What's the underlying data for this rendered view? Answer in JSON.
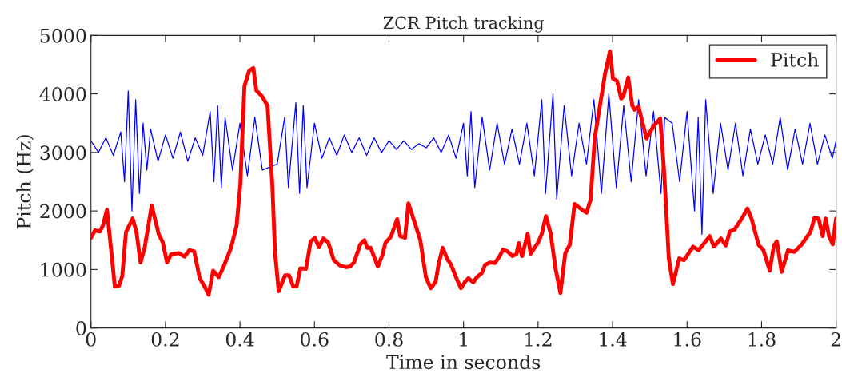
{
  "chart_data": {
    "type": "line",
    "title": "ZCR Pitch tracking",
    "xlabel": "Time in seconds",
    "ylabel": "Pitch (Hz)",
    "xlim": [
      0,
      2
    ],
    "ylim": [
      0,
      5000
    ],
    "xticks": [
      0,
      0.2,
      0.4,
      0.6,
      0.8,
      1,
      1.2,
      1.4,
      1.6,
      1.8,
      2
    ],
    "yticks": [
      0,
      1000,
      2000,
      3000,
      4000,
      5000
    ],
    "grid": false,
    "legend": "top right",
    "series": [
      {
        "color": "#0000ff",
        "x": [
          0,
          0.02,
          0.04,
          0.06,
          0.08,
          0.09,
          0.1,
          0.11,
          0.12,
          0.13,
          0.14,
          0.15,
          0.16,
          0.18,
          0.2,
          0.22,
          0.24,
          0.26,
          0.28,
          0.3,
          0.32,
          0.33,
          0.34,
          0.35,
          0.36,
          0.38,
          0.4,
          0.42,
          0.44,
          0.46,
          0.48,
          0.5,
          0.52,
          0.53,
          0.55,
          0.56,
          0.57,
          0.58,
          0.6,
          0.62,
          0.64,
          0.66,
          0.68,
          0.7,
          0.72,
          0.74,
          0.76,
          0.78,
          0.8,
          0.82,
          0.84,
          0.86,
          0.88,
          0.9,
          0.92,
          0.94,
          0.96,
          0.98,
          1.0,
          1.01,
          1.02,
          1.03,
          1.05,
          1.07,
          1.09,
          1.11,
          1.13,
          1.15,
          1.17,
          1.19,
          1.21,
          1.22,
          1.24,
          1.25,
          1.27,
          1.29,
          1.31,
          1.33,
          1.35,
          1.37,
          1.39,
          1.41,
          1.43,
          1.45,
          1.47,
          1.49,
          1.51,
          1.53,
          1.54,
          1.545,
          1.56,
          1.58,
          1.6,
          1.62,
          1.63,
          1.64,
          1.65,
          1.67,
          1.69,
          1.71,
          1.73,
          1.75,
          1.77,
          1.79,
          1.81,
          1.83,
          1.85,
          1.87,
          1.89,
          1.91,
          1.93,
          1.95,
          1.97,
          1.99,
          2.0
        ],
        "values": [
          3200,
          3000,
          3250,
          2950,
          3350,
          2500,
          4050,
          2000,
          3900,
          2300,
          3500,
          2700,
          3400,
          2850,
          3300,
          2900,
          3350,
          2850,
          3250,
          2950,
          3700,
          2500,
          3800,
          2400,
          3600,
          2700,
          3500,
          2600,
          3600,
          2700,
          null,
          2800,
          3600,
          2400,
          3850,
          2300,
          3800,
          2400,
          3500,
          2900,
          3250,
          2950,
          3300,
          3000,
          3250,
          2950,
          3250,
          3000,
          3200,
          3050,
          3200,
          3050,
          3150,
          3080,
          3250,
          3000,
          3300,
          2900,
          3500,
          2600,
          3700,
          2400,
          3600,
          2700,
          3500,
          2800,
          3400,
          2800,
          3500,
          2600,
          3900,
          2300,
          4000,
          2200,
          3800,
          2600,
          3500,
          2800,
          3900,
          2300,
          4000,
          2400,
          3800,
          2500,
          3900,
          2600,
          3700,
          2300,
          3600,
          null,
          3500,
          2500,
          3700,
          2000,
          3600,
          1600,
          3900,
          2300,
          3500,
          2700,
          3500,
          2600,
          3400,
          2800,
          3300,
          2800,
          3600,
          2700,
          3400,
          2800,
          3500,
          2800,
          3300,
          2900,
          3200
        ]
      },
      {
        "name": "Pitch",
        "color": "#ff0000",
        "x": [
          0,
          0.011,
          0.024,
          0.032,
          0.043,
          0.058,
          0.064,
          0.075,
          0.084,
          0.094,
          0.112,
          0.122,
          0.133,
          0.144,
          0.163,
          0.182,
          0.193,
          0.204,
          0.215,
          0.236,
          0.251,
          0.264,
          0.277,
          0.292,
          0.305,
          0.316,
          0.328,
          0.343,
          0.356,
          0.376,
          0.391,
          0.401,
          0.412,
          0.425,
          0.436,
          0.444,
          0.459,
          0.474,
          0.487,
          0.494,
          0.504,
          0.521,
          0.532,
          0.543,
          0.552,
          0.562,
          0.577,
          0.59,
          0.601,
          0.612,
          0.624,
          0.637,
          0.652,
          0.668,
          0.685,
          0.695,
          0.706,
          0.723,
          0.734,
          0.742,
          0.751,
          0.77,
          0.783,
          0.79,
          0.805,
          0.822,
          0.83,
          0.843,
          0.852,
          0.869,
          0.884,
          0.899,
          0.912,
          0.925,
          0.933,
          0.944,
          0.957,
          0.966,
          0.981,
          0.993,
          1.004,
          1.013,
          1.026,
          1.036,
          1.049,
          1.058,
          1.071,
          1.084,
          1.097,
          1.106,
          1.118,
          1.131,
          1.142,
          1.148,
          1.157,
          1.172,
          1.18,
          1.2,
          1.21,
          1.221,
          1.234,
          1.247,
          1.26,
          1.273,
          1.285,
          1.298,
          1.318,
          1.33,
          1.341,
          1.352,
          1.38,
          1.393,
          1.401,
          1.412,
          1.423,
          1.429,
          1.442,
          1.453,
          1.459,
          1.47,
          1.491,
          1.511,
          1.528,
          1.539,
          1.551,
          1.562,
          1.579,
          1.592,
          1.616,
          1.631,
          1.661,
          1.672,
          1.691,
          1.704,
          1.715,
          1.727,
          1.747,
          1.762,
          1.773,
          1.792,
          1.805,
          1.822,
          1.833,
          1.841,
          1.854,
          1.871,
          1.888,
          1.908,
          1.931,
          1.942,
          1.953,
          1.964,
          1.972,
          1.981,
          1.991,
          2.0
        ],
        "values": [
          1540,
          1670,
          1650,
          1750,
          2020,
          1090,
          710,
          720,
          890,
          1640,
          1870,
          1640,
          1120,
          1370,
          2090,
          1600,
          1460,
          1120,
          1260,
          1280,
          1220,
          1330,
          1310,
          850,
          710,
          570,
          980,
          870,
          1050,
          1370,
          1750,
          2460,
          4130,
          4400,
          4440,
          4060,
          3960,
          3800,
          2430,
          1300,
          630,
          900,
          900,
          710,
          710,
          1020,
          1010,
          1480,
          1540,
          1380,
          1530,
          1460,
          1160,
          1070,
          1040,
          1050,
          1120,
          1430,
          1500,
          1370,
          1370,
          1050,
          1260,
          1450,
          1560,
          1860,
          1570,
          1540,
          2130,
          1800,
          1500,
          870,
          680,
          790,
          1090,
          1370,
          1170,
          1090,
          850,
          680,
          790,
          850,
          780,
          870,
          940,
          1080,
          1120,
          1110,
          1230,
          1340,
          1310,
          1230,
          1260,
          1450,
          1230,
          1610,
          1270,
          1460,
          1610,
          1910,
          1610,
          1010,
          600,
          1280,
          1420,
          2120,
          2020,
          1970,
          2190,
          3240,
          4350,
          4730,
          4260,
          4220,
          3920,
          3960,
          4280,
          3800,
          3730,
          3780,
          3240,
          3460,
          3580,
          2620,
          1190,
          750,
          1190,
          1160,
          1390,
          1330,
          1570,
          1390,
          1530,
          1410,
          1650,
          1680,
          1870,
          2040,
          1870,
          1420,
          1330,
          980,
          1410,
          1480,
          960,
          1330,
          1300,
          1430,
          1640,
          1880,
          1870,
          1570,
          1870,
          1570,
          1430,
          1870
        ]
      }
    ]
  }
}
